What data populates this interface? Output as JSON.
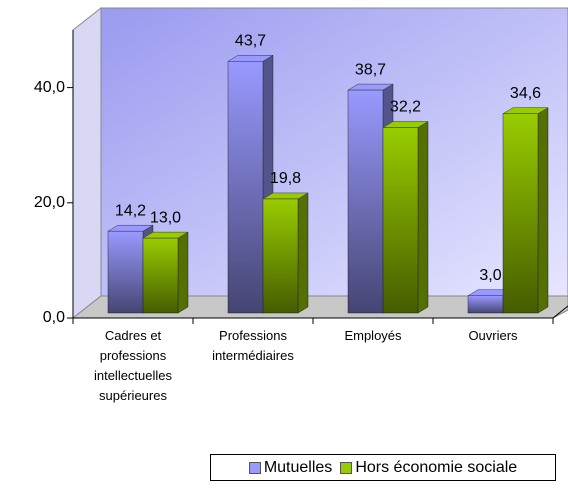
{
  "chart_data": {
    "type": "bar3d",
    "categories": [
      "Cadres et professions intellectuelles supérieures",
      "Professions intermédiaires",
      "Employés",
      "Ouvriers"
    ],
    "series": [
      {
        "name": "Mutuelles",
        "color": "#9999ff",
        "values": [
          14.2,
          43.7,
          38.7,
          3.0
        ],
        "value_labels": [
          "14,2",
          "43,7",
          "38,7",
          "3,0"
        ]
      },
      {
        "name": "Hors économie sociale",
        "color": "#99cc00",
        "values": [
          13.0,
          19.8,
          32.2,
          34.6
        ],
        "value_labels": [
          "13,0",
          "19,8",
          "32,2",
          "34,6"
        ]
      }
    ],
    "ylim": [
      0,
      50
    ],
    "yticks": [
      {
        "value": 0,
        "label": "0,0"
      },
      {
        "value": 20,
        "label": "20,0"
      },
      {
        "value": 40,
        "label": "40,0"
      }
    ],
    "legend": "bottom-right"
  }
}
